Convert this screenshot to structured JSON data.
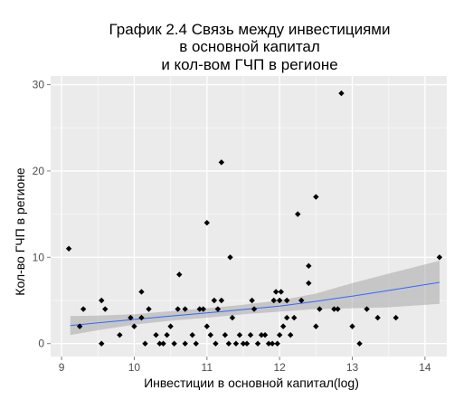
{
  "chart_data": {
    "type": "scatter",
    "title_lines": [
      "График 2.4 Связь между инвестициями",
      "в основной капитал",
      "и кол-вом ГЧП в регионе"
    ],
    "xlabel": "Инвестиции в основной капитал(log)",
    "ylabel": "Кол-во ГЧП в регионе",
    "xlim": [
      8.85,
      14.3
    ],
    "ylim": [
      -1.5,
      31
    ],
    "xticks": [
      9,
      10,
      11,
      12,
      13,
      14
    ],
    "yticks": [
      0,
      10,
      20,
      30
    ],
    "grid": true,
    "colors": {
      "panel": "#ebebeb",
      "grid_major": "#ffffff",
      "grid_minor": "#f5f5f5",
      "point": "#000000",
      "fit_line": "#3366ff",
      "ribbon": "#999999"
    },
    "points": [
      [
        9.1,
        11
      ],
      [
        9.25,
        2
      ],
      [
        9.3,
        4
      ],
      [
        9.55,
        0
      ],
      [
        9.55,
        5
      ],
      [
        9.6,
        4
      ],
      [
        9.8,
        1
      ],
      [
        9.95,
        3
      ],
      [
        10.0,
        2
      ],
      [
        10.1,
        3
      ],
      [
        10.1,
        6
      ],
      [
        10.15,
        0
      ],
      [
        10.2,
        4
      ],
      [
        10.3,
        1
      ],
      [
        10.35,
        0
      ],
      [
        10.4,
        0
      ],
      [
        10.45,
        1
      ],
      [
        10.5,
        2
      ],
      [
        10.55,
        0
      ],
      [
        10.6,
        4
      ],
      [
        10.62,
        8
      ],
      [
        10.7,
        0
      ],
      [
        10.7,
        4
      ],
      [
        10.8,
        1
      ],
      [
        10.85,
        0
      ],
      [
        10.9,
        4
      ],
      [
        10.95,
        4
      ],
      [
        11.0,
        2
      ],
      [
        11.0,
        14
      ],
      [
        11.05,
        1
      ],
      [
        11.1,
        5
      ],
      [
        11.12,
        0
      ],
      [
        11.15,
        4
      ],
      [
        11.2,
        5
      ],
      [
        11.2,
        21
      ],
      [
        11.25,
        1
      ],
      [
        11.3,
        0
      ],
      [
        11.32,
        10
      ],
      [
        11.35,
        3
      ],
      [
        11.4,
        0
      ],
      [
        11.45,
        1
      ],
      [
        11.5,
        0
      ],
      [
        11.55,
        0
      ],
      [
        11.6,
        1
      ],
      [
        11.62,
        5
      ],
      [
        11.65,
        4
      ],
      [
        11.7,
        0
      ],
      [
        11.75,
        1
      ],
      [
        11.8,
        1
      ],
      [
        11.85,
        0
      ],
      [
        11.9,
        0
      ],
      [
        11.92,
        5
      ],
      [
        11.95,
        6
      ],
      [
        11.97,
        0
      ],
      [
        12.0,
        1
      ],
      [
        12.0,
        5
      ],
      [
        12.02,
        6
      ],
      [
        12.05,
        2
      ],
      [
        12.1,
        5
      ],
      [
        12.1,
        3
      ],
      [
        12.15,
        1
      ],
      [
        12.2,
        3
      ],
      [
        12.25,
        15
      ],
      [
        12.3,
        5
      ],
      [
        12.4,
        7
      ],
      [
        12.4,
        9
      ],
      [
        12.5,
        17
      ],
      [
        12.5,
        2
      ],
      [
        12.55,
        4
      ],
      [
        12.75,
        4
      ],
      [
        12.8,
        4
      ],
      [
        12.85,
        29
      ],
      [
        13.0,
        2
      ],
      [
        13.1,
        0
      ],
      [
        13.2,
        4
      ],
      [
        13.35,
        3
      ],
      [
        13.6,
        3
      ],
      [
        14.2,
        10
      ]
    ],
    "fit_line": [
      [
        9.12,
        2.1
      ],
      [
        9.5,
        2.4
      ],
      [
        10.0,
        2.8
      ],
      [
        10.5,
        3.2
      ],
      [
        11.0,
        3.55
      ],
      [
        11.5,
        3.95
      ],
      [
        12.0,
        4.35
      ],
      [
        12.5,
        4.9
      ],
      [
        13.0,
        5.5
      ],
      [
        13.5,
        6.15
      ],
      [
        14.2,
        7.1
      ]
    ],
    "ribbon_upper": [
      [
        9.12,
        3.2
      ],
      [
        9.5,
        3.25
      ],
      [
        10.0,
        3.4
      ],
      [
        10.5,
        3.75
      ],
      [
        11.0,
        4.1
      ],
      [
        11.5,
        4.5
      ],
      [
        12.0,
        5.0
      ],
      [
        12.5,
        5.8
      ],
      [
        13.0,
        7.0
      ],
      [
        13.5,
        8.1
      ],
      [
        14.2,
        9.6
      ]
    ],
    "ribbon_lower": [
      [
        9.12,
        1.0
      ],
      [
        9.5,
        1.55
      ],
      [
        10.0,
        2.2
      ],
      [
        10.5,
        2.65
      ],
      [
        11.0,
        3.0
      ],
      [
        11.5,
        3.4
      ],
      [
        12.0,
        3.7
      ],
      [
        12.5,
        4.0
      ],
      [
        13.0,
        4.1
      ],
      [
        13.5,
        4.2
      ],
      [
        14.2,
        4.6
      ]
    ]
  }
}
